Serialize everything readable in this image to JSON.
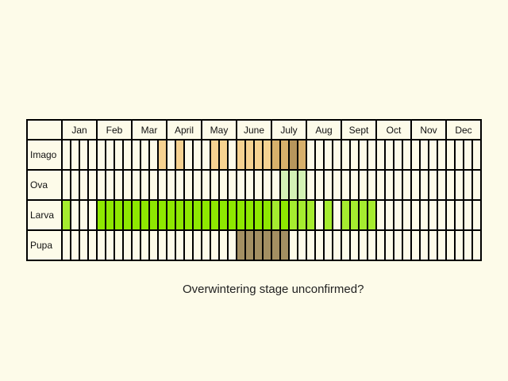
{
  "chart_data": {
    "type": "table",
    "months": [
      "Jan",
      "Feb",
      "Mar",
      "April",
      "May",
      "June",
      "July",
      "Aug",
      "Sept",
      "Oct",
      "Nov",
      "Dec"
    ],
    "weeks_per_month": 4,
    "stages": [
      {
        "name": "Imago",
        "color": "#f4c87a",
        "fills": [
          {
            "week": 11,
            "level": 1
          },
          {
            "week": 13,
            "level": 1
          },
          {
            "week": 17,
            "level": 1
          },
          {
            "week": 18,
            "level": 1
          },
          {
            "week": 20,
            "level": 1
          },
          {
            "week": 21,
            "level": 1
          },
          {
            "week": 22,
            "level": 1
          },
          {
            "week": 23,
            "level": 1
          },
          {
            "week": 24,
            "level": 2
          },
          {
            "week": 25,
            "level": 2
          },
          {
            "week": 26,
            "level": 3
          },
          {
            "week": 27,
            "level": 2
          }
        ]
      },
      {
        "name": "Ova",
        "color": "#c8f0a8",
        "fills": [
          {
            "week": 25,
            "level": 1
          },
          {
            "week": 26,
            "level": 1
          },
          {
            "week": 27,
            "level": 1
          }
        ]
      },
      {
        "name": "Larva",
        "color": "#8ee800",
        "fills": [
          {
            "week": 0,
            "level": 1
          },
          {
            "week": 4,
            "level": 2
          },
          {
            "week": 5,
            "level": 2
          },
          {
            "week": 6,
            "level": 2
          },
          {
            "week": 7,
            "level": 2
          },
          {
            "week": 8,
            "level": 2
          },
          {
            "week": 9,
            "level": 2
          },
          {
            "week": 10,
            "level": 2
          },
          {
            "week": 11,
            "level": 2
          },
          {
            "week": 12,
            "level": 2
          },
          {
            "week": 13,
            "level": 2
          },
          {
            "week": 14,
            "level": 2
          },
          {
            "week": 15,
            "level": 2
          },
          {
            "week": 16,
            "level": 2
          },
          {
            "week": 17,
            "level": 2
          },
          {
            "week": 18,
            "level": 2
          },
          {
            "week": 19,
            "level": 2
          },
          {
            "week": 20,
            "level": 2
          },
          {
            "week": 21,
            "level": 2
          },
          {
            "week": 22,
            "level": 2
          },
          {
            "week": 23,
            "level": 2
          },
          {
            "week": 24,
            "level": 1
          },
          {
            "week": 25,
            "level": 2
          },
          {
            "week": 26,
            "level": 1
          },
          {
            "week": 27,
            "level": 1
          },
          {
            "week": 28,
            "level": 1
          },
          {
            "week": 30,
            "level": 1
          },
          {
            "week": 32,
            "level": 1
          },
          {
            "week": 33,
            "level": 1
          },
          {
            "week": 34,
            "level": 1
          },
          {
            "week": 35,
            "level": 1
          }
        ]
      },
      {
        "name": "Pupa",
        "color": "#8c7440",
        "fills": [
          {
            "week": 20,
            "level": 1
          },
          {
            "week": 21,
            "level": 1
          },
          {
            "week": 22,
            "level": 1
          },
          {
            "week": 23,
            "level": 1
          },
          {
            "week": 24,
            "level": 1
          },
          {
            "week": 25,
            "level": 1
          }
        ]
      }
    ],
    "note": "Overwintering stage unconfirmed?"
  }
}
